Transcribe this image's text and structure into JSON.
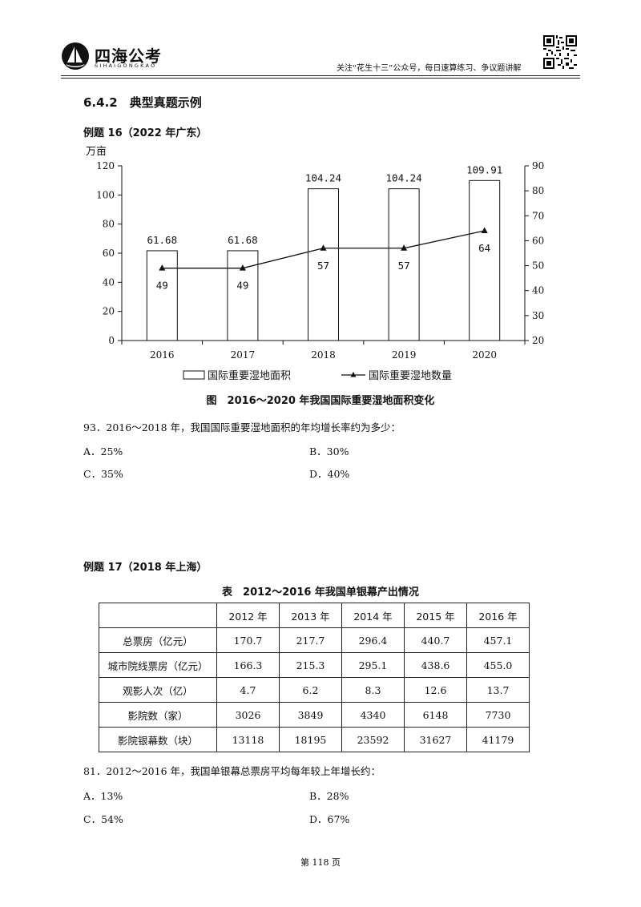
{
  "header": {
    "logo_text": "四海公考",
    "logo_sub": "SIHAIGONGKAO",
    "slogan": "关注“花生十三”公众号，每日速算练习、争议题讲解"
  },
  "section_title": "6.4.2　典型真题示例",
  "example16": {
    "title": "例题 16（2022 年广东）",
    "chart_caption": "图　2016～2020 年我国国际重要湿地面积变化"
  },
  "chart_data": {
    "type": "bar+line",
    "categories": [
      "2016",
      "2017",
      "2018",
      "2019",
      "2020"
    ],
    "left_axis": {
      "unit": "万亩",
      "ylim": [
        0,
        120
      ],
      "ticks": [
        "0",
        "20",
        "40",
        "60",
        "80",
        "100",
        "120"
      ]
    },
    "right_axis": {
      "ylim": [
        20,
        90
      ],
      "ticks": [
        "20",
        "30",
        "40",
        "50",
        "60",
        "70",
        "80",
        "90"
      ]
    },
    "series": [
      {
        "name": "国际重要湿地面积",
        "kind": "bar",
        "axis": "left",
        "values": [
          61.68,
          61.68,
          104.24,
          104.24,
          109.91
        ],
        "labels": [
          "61.68",
          "61.68",
          "104.24",
          "104.24",
          "109.91"
        ]
      },
      {
        "name": "国际重要湿地数量",
        "kind": "line",
        "axis": "right",
        "values": [
          49,
          49,
          57,
          57,
          64
        ],
        "labels": [
          "49",
          "49",
          "57",
          "57",
          "64"
        ]
      }
    ],
    "grid": false,
    "legend": "bottom"
  },
  "q93": {
    "stem": "93．2016～2018 年，我国国际重要湿地面积的年均增长率约为多少：",
    "a": "A．25%",
    "b": "B．30%",
    "c": "C．35%",
    "d": "D．40%"
  },
  "example17": {
    "title": "例题 17（2018 年上海）",
    "table_caption": "表　2012～2016 年我国单银幕产出情况",
    "table": {
      "headers": [
        "",
        "2012 年",
        "2013 年",
        "2014 年",
        "2015 年",
        "2016 年"
      ],
      "rows": [
        [
          "总票房（亿元）",
          "170.7",
          "217.7",
          "296.4",
          "440.7",
          "457.1"
        ],
        [
          "城市院线票房（亿元）",
          "166.3",
          "215.3",
          "295.1",
          "438.6",
          "455.0"
        ],
        [
          "观影人次（亿）",
          "4.7",
          "6.2",
          "8.3",
          "12.6",
          "13.7"
        ],
        [
          "影院数（家）",
          "3026",
          "3849",
          "4340",
          "6148",
          "7730"
        ],
        [
          "影院银幕数（块）",
          "13118",
          "18195",
          "23592",
          "31627",
          "41179"
        ]
      ]
    }
  },
  "q81": {
    "stem": "81．2012～2016 年，我国单银幕总票房平均每年较上年增长约：",
    "a": "A．13%",
    "b": "B．28%",
    "c": "C．54%",
    "d": "D．67%"
  },
  "page_number": "第 118 页"
}
